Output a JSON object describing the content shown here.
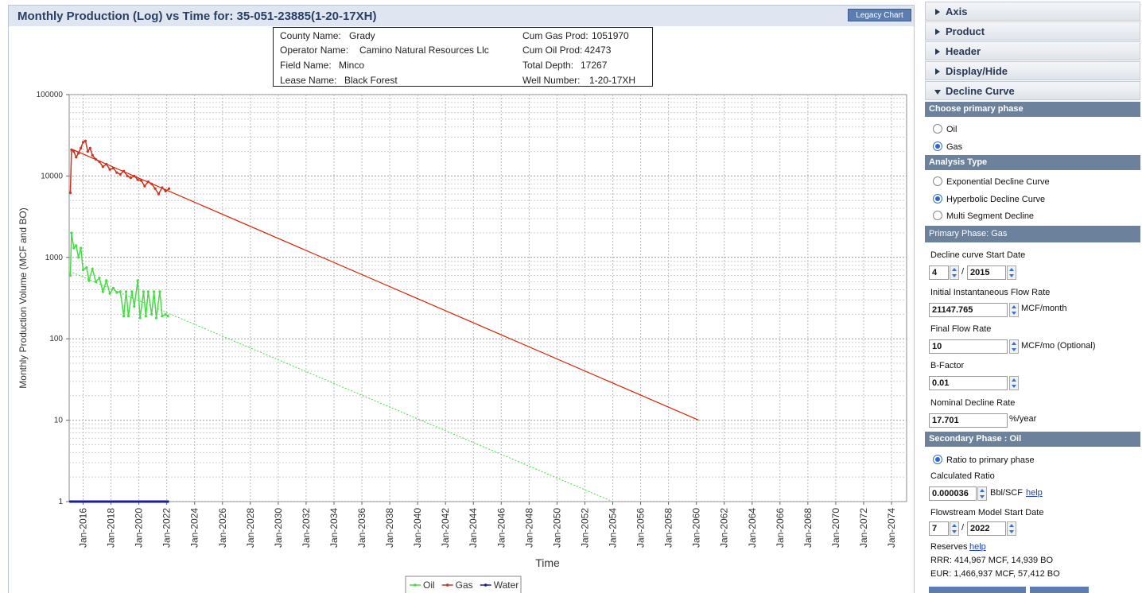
{
  "toolbar": {
    "button": "Legacy Chart"
  },
  "info": {
    "rows": [
      [
        "County Name:",
        "Grady",
        "Cum Gas Prod:",
        "1051970"
      ],
      [
        "Operator Name:",
        "Camino Natural Resources Llc",
        "Cum Oil Prod:",
        "42473"
      ],
      [
        "Field Name:",
        "Minco",
        "Total Depth:",
        "17267"
      ],
      [
        "Lease Name:",
        "Black Forest",
        "Well Number:",
        "1-20-17XH"
      ]
    ]
  },
  "chart_data": {
    "type": "line",
    "title": "Monthly Production (Log) vs Time for: 35-051-23885(1-20-17XH)",
    "x_label": "Time",
    "y_label": "Monthly Production Volume (MCF and BO)",
    "yscale": "log",
    "grid": true,
    "legend": "bottom",
    "xlim": [
      "2015-01",
      "2075-02"
    ],
    "xticks": [
      {
        "value": "2016-01",
        "label": "Jan-2016"
      },
      {
        "value": "2018-01",
        "label": "Jan-2018"
      },
      {
        "value": "2020-01",
        "label": "Jan-2020"
      },
      {
        "value": "2022-01",
        "label": "Jan-2022"
      },
      {
        "value": "2024-01",
        "label": "Jan-2024"
      },
      {
        "value": "2026-01",
        "label": "Jan-2026"
      },
      {
        "value": "2028-01",
        "label": "Jan-2028"
      },
      {
        "value": "2030-01",
        "label": "Jan-2030"
      },
      {
        "value": "2032-01",
        "label": "Jan-2032"
      },
      {
        "value": "2034-01",
        "label": "Jan-2034"
      },
      {
        "value": "2036-01",
        "label": "Jan-2036"
      },
      {
        "value": "2038-01",
        "label": "Jan-2038"
      },
      {
        "value": "2040-01",
        "label": "Jan-2040"
      },
      {
        "value": "2042-01",
        "label": "Jan-2042"
      },
      {
        "value": "2044-01",
        "label": "Jan-2044"
      },
      {
        "value": "2046-01",
        "label": "Jan-2046"
      },
      {
        "value": "2048-01",
        "label": "Jan-2048"
      },
      {
        "value": "2050-01",
        "label": "Jan-2050"
      },
      {
        "value": "2052-01",
        "label": "Jan-2052"
      },
      {
        "value": "2054-01",
        "label": "Jan-2054"
      },
      {
        "value": "2056-01",
        "label": "Jan-2056"
      },
      {
        "value": "2058-01",
        "label": "Jan-2058"
      },
      {
        "value": "2060-01",
        "label": "Jan-2060"
      },
      {
        "value": "2062-01",
        "label": "Jan-2062"
      },
      {
        "value": "2064-01",
        "label": "Jan-2064"
      },
      {
        "value": "2066-01",
        "label": "Jan-2066"
      },
      {
        "value": "2068-01",
        "label": "Jan-2068"
      },
      {
        "value": "2070-01",
        "label": "Jan-2070"
      },
      {
        "value": "2072-01",
        "label": "Jan-2072"
      },
      {
        "value": "2074-01",
        "label": "Jan-2074"
      }
    ],
    "ylim": [
      1,
      100000
    ],
    "yticks": [
      1,
      10,
      100,
      1000,
      10000,
      100000
    ],
    "yminorticks": [
      2,
      3,
      4,
      5,
      6,
      7,
      8,
      9,
      20,
      30,
      40,
      50,
      60,
      70,
      80,
      90,
      200,
      300,
      400,
      500,
      600,
      700,
      800,
      900,
      2000,
      3000,
      4000,
      5000,
      6000,
      7000,
      8000,
      9000,
      20000,
      30000,
      40000,
      50000,
      60000,
      70000,
      80000,
      90000
    ],
    "series": [
      {
        "name": "Oil",
        "color": "#44dd44",
        "x": [
          "2015-02",
          "2015-03",
          "2015-05",
          "2015-07",
          "2015-09",
          "2015-11",
          "2016-01",
          "2016-04",
          "2016-06",
          "2016-09",
          "2016-12",
          "2017-03",
          "2017-06",
          "2017-09",
          "2017-12",
          "2018-03",
          "2018-06",
          "2018-09",
          "2018-12",
          "2019-02",
          "2019-04",
          "2019-07",
          "2019-09",
          "2019-12",
          "2020-02",
          "2020-05",
          "2020-07",
          "2020-09",
          "2020-12",
          "2021-02",
          "2021-04",
          "2021-07",
          "2021-09",
          "2021-12",
          "2022-02"
        ],
        "values": [
          600,
          2000,
          1300,
          1400,
          1000,
          1300,
          700,
          750,
          520,
          720,
          500,
          560,
          380,
          520,
          360,
          420,
          370,
          380,
          190,
          380,
          190,
          380,
          250,
          520,
          180,
          380,
          190,
          380,
          200,
          380,
          180,
          380,
          190,
          200,
          190
        ]
      },
      {
        "name": "Gas",
        "color": "#cc3322",
        "x": [
          "2015-02",
          "2015-03",
          "2015-05",
          "2015-07",
          "2015-09",
          "2015-11",
          "2016-01",
          "2016-03",
          "2016-05",
          "2016-07",
          "2016-09",
          "2016-12",
          "2017-03",
          "2017-06",
          "2017-09",
          "2017-12",
          "2018-03",
          "2018-06",
          "2018-09",
          "2018-12",
          "2019-03",
          "2019-06",
          "2019-09",
          "2019-12",
          "2020-03",
          "2020-06",
          "2020-09",
          "2020-12",
          "2021-03",
          "2021-06",
          "2021-09",
          "2021-12",
          "2022-03"
        ],
        "values": [
          6200,
          21000,
          20000,
          17000,
          19000,
          22000,
          26000,
          27000,
          20000,
          22000,
          18000,
          16000,
          15000,
          13000,
          14000,
          12000,
          12500,
          11000,
          10500,
          11500,
          10000,
          9500,
          10000,
          9000,
          8800,
          7500,
          8500,
          8000,
          7000,
          6000,
          7200,
          6500,
          7000
        ]
      },
      {
        "name": "Water",
        "color": "#1a1aa6",
        "x": [
          "2015-02",
          "2022-02"
        ],
        "values": [
          1,
          1
        ]
      }
    ],
    "forecasts": [
      {
        "color": "#dd2200",
        "dash": false,
        "x": [
          "2015-04",
          "2060-03"
        ],
        "values": [
          21148,
          10
        ]
      },
      {
        "color": "#44dd44",
        "dash": true,
        "x": [
          "2015-04",
          "2054-01"
        ],
        "values": [
          650,
          1
        ]
      }
    ]
  },
  "sidebar": {
    "sections": [
      "Axis",
      "Product",
      "Header",
      "Display/Hide",
      "Decline Curve"
    ],
    "primary_phase": {
      "heading": "Choose primary phase",
      "options": [
        "Oil",
        "Gas"
      ],
      "selected": 1
    },
    "analysis_type": {
      "heading": "Analysis Type",
      "options": [
        "Exponential Decline Curve",
        "Hyperbolic Decline Curve",
        "Multi Segment Decline"
      ],
      "selected": 1
    },
    "primary": {
      "heading": "Primary Phase: Gas",
      "start_label": "Decline curve Start Date",
      "start_month": "4",
      "separator": "/",
      "start_year": "2015",
      "rate_label": "Initial Instantaneous Flow Rate",
      "rate": "21147.765",
      "rate_unit": "MCF/month",
      "final_label": "Final Flow Rate",
      "final": "10",
      "final_unit": "MCF/mo (Optional)",
      "b_label": "B-Factor",
      "b": "0.01",
      "nominal_label": "Nominal Decline Rate",
      "nominal": "17.701",
      "nominal_unit": "%/year"
    },
    "secondary": {
      "heading": "Secondary Phase : Oil",
      "option": "Ratio to primary phase",
      "ratio_label": "Calculated Ratio",
      "ratio": "0.000036",
      "ratio_unit": "Bbl/SCF",
      "ratio_help": "help",
      "flow_label": "Flowstream Model Start Date",
      "flow_month": "7",
      "separator": "/",
      "flow_year": "2022",
      "reserves": "Reserves",
      "reserves_help": "help",
      "rrr": "RRR: 414,967 MCF, 14,939 BO",
      "eur": "EUR: 1,466,937 MCF, 57,412 BO"
    }
  }
}
